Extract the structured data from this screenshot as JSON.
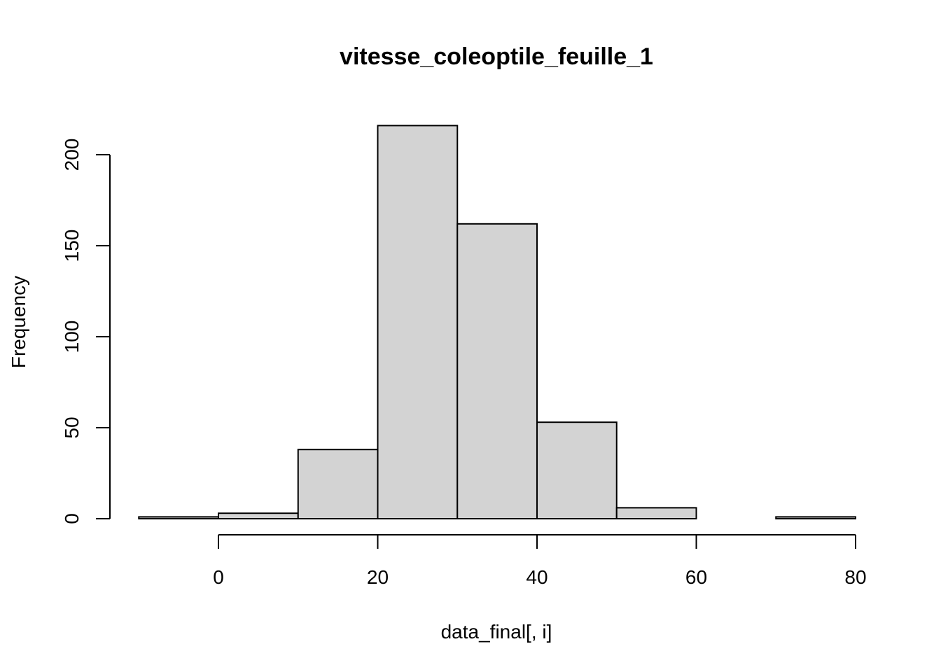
{
  "chart_data": {
    "type": "bar",
    "title": "vitesse_coleoptile_feuille_1",
    "xlabel": "data_final[, i]",
    "ylabel": "Frequency",
    "bins": [
      {
        "from": -10,
        "to": 0,
        "count": 1
      },
      {
        "from": 0,
        "to": 10,
        "count": 3
      },
      {
        "from": 10,
        "to": 20,
        "count": 38
      },
      {
        "from": 20,
        "to": 30,
        "count": 216
      },
      {
        "from": 30,
        "to": 40,
        "count": 162
      },
      {
        "from": 40,
        "to": 50,
        "count": 53
      },
      {
        "from": 50,
        "to": 60,
        "count": 6
      },
      {
        "from": 60,
        "to": 70,
        "count": 0
      },
      {
        "from": 70,
        "to": 80,
        "count": 1
      }
    ],
    "xlim": [
      -10,
      80
    ],
    "ylim": [
      0,
      216
    ],
    "x_ticks": [
      0,
      20,
      40,
      60,
      80
    ],
    "y_ticks": [
      0,
      50,
      100,
      150,
      200
    ],
    "bar_fill": "#d3d3d3",
    "bar_stroke": "#000000",
    "grid": false,
    "legend": "none"
  }
}
